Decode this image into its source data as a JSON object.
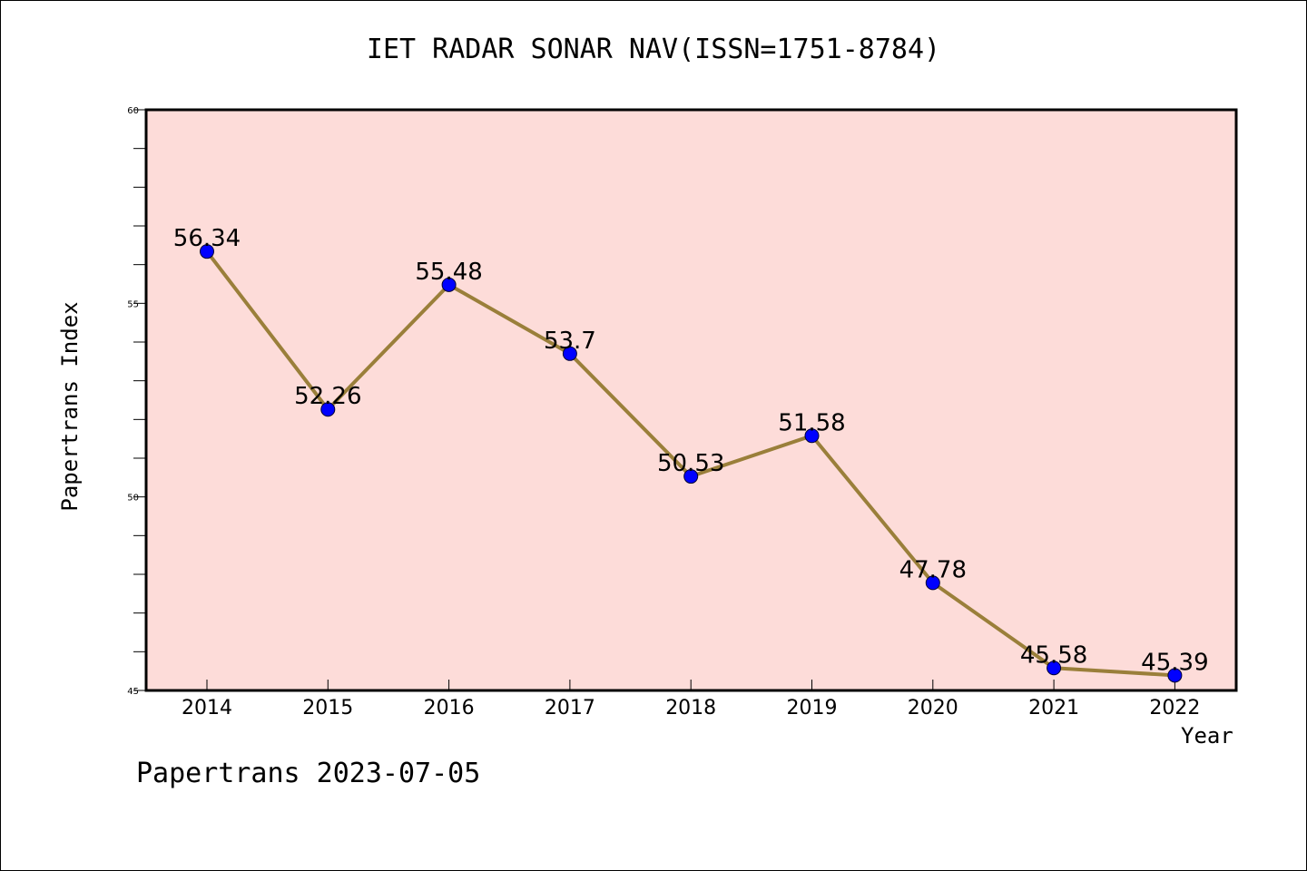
{
  "title": "IET RADAR SONAR NAV(ISSN=1751-8784)",
  "footer": "Papertrans 2023-07-05",
  "colors": {
    "plot_background": "#fddcd9",
    "line": "#9a7f3a",
    "marker": "#0000ff"
  },
  "chart_data": {
    "type": "line",
    "title": "IET RADAR SONAR NAV(ISSN=1751-8784)",
    "xlabel": "Year",
    "ylabel": "Papertrans Index",
    "categories": [
      "2014",
      "2015",
      "2016",
      "2017",
      "2018",
      "2019",
      "2020",
      "2021",
      "2022"
    ],
    "series": [
      {
        "values": [
          56.34,
          52.26,
          55.48,
          53.7,
          50.53,
          51.58,
          47.78,
          45.58,
          45.39
        ],
        "labels": [
          "56.34",
          "52.26",
          "55.48",
          "53.7",
          "50.53",
          "51.58",
          "47.78",
          "45.58",
          "45.39"
        ]
      }
    ],
    "ylim": [
      45,
      60
    ],
    "y_ticks": [
      "45",
      "50",
      "55",
      "60"
    ],
    "grid": false,
    "legend": "none"
  }
}
